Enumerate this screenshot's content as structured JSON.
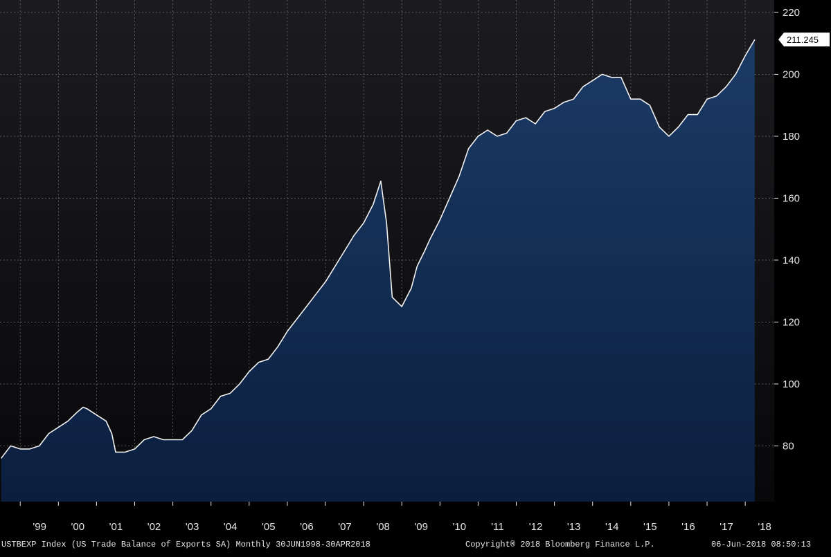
{
  "chart_data": {
    "type": "area",
    "x": [
      1998.5,
      1998.75,
      1999.0,
      1999.25,
      1999.5,
      1999.75,
      2000.0,
      2000.25,
      2000.5,
      2000.65,
      2000.75,
      2001.0,
      2001.25,
      2001.4,
      2001.5,
      2001.75,
      2002.0,
      2002.25,
      2002.5,
      2002.75,
      2003.0,
      2003.25,
      2003.5,
      2003.75,
      2004.0,
      2004.25,
      2004.5,
      2004.75,
      2005.0,
      2005.25,
      2005.5,
      2005.75,
      2006.0,
      2006.25,
      2006.5,
      2006.75,
      2007.0,
      2007.25,
      2007.5,
      2007.75,
      2008.0,
      2008.25,
      2008.45,
      2008.6,
      2008.75,
      2009.0,
      2009.25,
      2009.4,
      2009.6,
      2009.75,
      2010.0,
      2010.25,
      2010.5,
      2010.75,
      2011.0,
      2011.25,
      2011.5,
      2011.75,
      2012.0,
      2012.25,
      2012.5,
      2012.75,
      2013.0,
      2013.25,
      2013.5,
      2013.75,
      2014.0,
      2014.25,
      2014.5,
      2014.75,
      2015.0,
      2015.25,
      2015.5,
      2015.75,
      2016.0,
      2016.25,
      2016.5,
      2016.75,
      2017.0,
      2017.25,
      2017.5,
      2017.75,
      2018.0,
      2018.25
    ],
    "y": [
      76,
      80,
      79,
      79,
      80,
      84,
      86,
      88,
      91,
      92.5,
      92,
      90,
      88,
      84,
      78,
      78,
      79,
      82,
      83,
      82,
      82,
      82,
      85,
      90,
      92,
      96,
      97,
      100,
      104,
      107,
      108,
      112,
      117,
      121,
      125,
      129,
      133,
      138,
      143,
      148,
      152,
      158,
      165.5,
      152,
      128,
      125,
      131,
      138,
      143,
      147,
      153,
      160,
      167,
      176,
      180,
      182,
      180,
      181,
      185,
      186,
      184,
      188,
      189,
      191,
      192,
      196,
      198,
      200,
      199,
      199,
      192,
      192,
      190,
      183,
      180,
      183,
      187,
      187,
      192,
      193,
      196,
      200,
      206,
      211.245
    ],
    "x_ticks": [
      "'99",
      "'00",
      "'01",
      "'02",
      "'03",
      "'04",
      "'05",
      "'06",
      "'07",
      "'08",
      "'09",
      "'10",
      "'11",
      "'12",
      "'13",
      "'14",
      "'15",
      "'16",
      "'17",
      "'18"
    ],
    "x_tick_values": [
      1999,
      2000,
      2001,
      2002,
      2003,
      2004,
      2005,
      2006,
      2007,
      2008,
      2009,
      2010,
      2011,
      2012,
      2013,
      2014,
      2015,
      2016,
      2017,
      2018
    ],
    "y_ticks": [
      80,
      100,
      120,
      140,
      160,
      180,
      200,
      220
    ],
    "ylim": [
      62,
      224
    ],
    "xlim": [
      1998.47,
      2018.76
    ],
    "last_value_label": "211.245",
    "grid": true,
    "colors": {
      "background": "#000000",
      "plot_background_top": "#1c1c20",
      "plot_background_bottom": "#08080a",
      "area_fill_top": "#1b3b66",
      "area_fill_bottom": "#0b1e3e",
      "line": "#f2f2f2",
      "grid": "#8a8a8a",
      "label_box": "#ffffff",
      "label_text": "#000000",
      "axis_text": "#e6e6e6"
    },
    "title": "",
    "xlabel": "",
    "ylabel": ""
  },
  "footer": {
    "left": "USTBEXP Index (US Trade Balance of Exports SA)  Monthly 30JUN1998-30APR2018",
    "copyright": "Copyright® 2018 Bloomberg Finance L.P.",
    "timestamp": "06-Jun-2018 08:50:13"
  }
}
